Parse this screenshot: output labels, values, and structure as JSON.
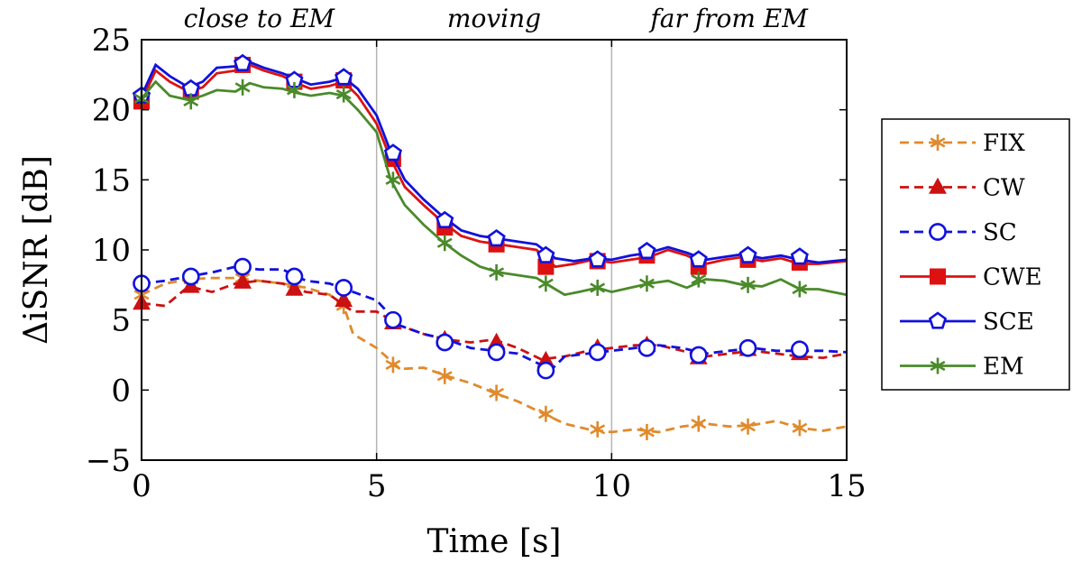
{
  "chart_data": {
    "type": "line",
    "title": "",
    "xlabel": "Time [s]",
    "ylabel": "ΔiSNR [dB]",
    "xlim": [
      0,
      15
    ],
    "ylim": [
      -5,
      25
    ],
    "xticks": [
      0,
      5,
      10,
      15
    ],
    "yticks": [
      -5,
      0,
      5,
      10,
      15,
      20,
      25
    ],
    "grid": "vertical-at-5-and-10",
    "legend": "right",
    "regions": [
      {
        "label": "close to EM",
        "x": 2.5
      },
      {
        "label": "moving",
        "x": 7.5
      },
      {
        "label": "far from EM",
        "x": 12.5
      }
    ],
    "series": [
      {
        "name": "FIX",
        "color": "#e08a2c",
        "dash": "dashed",
        "marker": "asterisk",
        "x": [
          0,
          0.5,
          1.0,
          1.5,
          2.0,
          2.5,
          3.0,
          3.5,
          4.0,
          4.3,
          4.5,
          5.0,
          5.5,
          6.0,
          6.5,
          7.0,
          7.5,
          8.0,
          8.5,
          9.0,
          9.5,
          10.0,
          10.5,
          11.0,
          11.5,
          12.0,
          12.5,
          13.0,
          13.5,
          14.0,
          14.5,
          15.0
        ],
        "y": [
          6.8,
          7.6,
          7.9,
          8.0,
          8.0,
          7.8,
          7.6,
          7.3,
          6.8,
          6.0,
          4.0,
          3.0,
          1.5,
          1.6,
          1.0,
          0.5,
          -0.2,
          -0.8,
          -1.6,
          -2.4,
          -2.8,
          -3.0,
          -2.8,
          -3.0,
          -2.6,
          -2.4,
          -2.6,
          -2.5,
          -2.2,
          -2.7,
          -2.9,
          -2.6
        ],
        "mx": [
          0.0,
          1.05,
          2.15,
          3.25,
          4.3,
          5.35,
          6.45,
          7.55,
          8.6,
          9.7,
          10.75,
          11.85,
          12.9,
          14.0
        ],
        "my": [
          6.8,
          7.9,
          8.0,
          7.6,
          6.0,
          1.8,
          1.0,
          -0.2,
          -1.7,
          -2.8,
          -3.0,
          -2.4,
          -2.6,
          -2.7
        ]
      },
      {
        "name": "CW",
        "color": "#cc1111",
        "dash": "dashed",
        "marker": "triangle",
        "x": [
          0,
          0.5,
          1.0,
          1.5,
          2.0,
          2.5,
          3.0,
          3.5,
          4.0,
          4.5,
          5.0,
          5.5,
          6.0,
          6.5,
          7.0,
          7.5,
          8.0,
          8.5,
          9.0,
          9.5,
          10.0,
          10.5,
          11.0,
          11.5,
          12.0,
          12.5,
          13.0,
          13.5,
          14.0,
          14.5,
          15.0
        ],
        "y": [
          6.2,
          6.0,
          7.4,
          7.0,
          7.6,
          7.8,
          7.6,
          7.0,
          6.8,
          5.6,
          5.6,
          4.6,
          4.0,
          3.6,
          3.4,
          3.6,
          3.0,
          2.2,
          2.4,
          2.8,
          3.0,
          3.2,
          3.2,
          2.8,
          2.4,
          2.6,
          2.8,
          2.6,
          2.4,
          2.3,
          2.6
        ],
        "mx": [
          0.0,
          1.05,
          2.15,
          3.25,
          4.3,
          5.35,
          6.45,
          7.55,
          8.6,
          9.7,
          10.75,
          11.85,
          12.9,
          14.0
        ],
        "my": [
          6.2,
          7.4,
          7.7,
          7.2,
          6.4,
          4.8,
          3.6,
          3.4,
          2.1,
          3.0,
          3.2,
          2.3,
          2.9,
          2.6
        ]
      },
      {
        "name": "SC",
        "color": "#1111dd",
        "dash": "dashed",
        "marker": "circle",
        "x": [
          0,
          0.5,
          1.0,
          1.5,
          2.0,
          2.5,
          3.0,
          3.5,
          4.0,
          4.5,
          5.0,
          5.5,
          6.0,
          6.5,
          7.0,
          7.5,
          8.0,
          8.5,
          8.7,
          9.0,
          9.5,
          10.0,
          10.5,
          11.0,
          11.5,
          12.0,
          12.5,
          13.0,
          13.5,
          14.0,
          14.5,
          15.0
        ],
        "y": [
          7.6,
          7.8,
          8.1,
          8.4,
          8.8,
          8.6,
          8.6,
          7.8,
          7.6,
          7.0,
          6.4,
          4.6,
          4.0,
          3.6,
          3.0,
          2.8,
          2.6,
          1.8,
          1.4,
          2.4,
          2.6,
          2.8,
          3.0,
          3.2,
          3.0,
          2.6,
          2.8,
          3.0,
          2.8,
          2.8,
          2.8,
          2.7
        ],
        "mx": [
          0.0,
          1.05,
          2.15,
          3.25,
          4.3,
          5.35,
          6.45,
          7.55,
          8.6,
          9.7,
          10.75,
          11.85,
          12.9,
          14.0
        ],
        "my": [
          7.6,
          8.1,
          8.8,
          8.1,
          7.3,
          5.0,
          3.4,
          2.7,
          1.4,
          2.7,
          3.0,
          2.5,
          3.0,
          2.9
        ]
      },
      {
        "name": "CWE",
        "color": "#dd1111",
        "dash": "solid",
        "marker": "square",
        "x": [
          0,
          0.3,
          0.6,
          1.0,
          1.3,
          1.6,
          2.0,
          2.3,
          2.6,
          3.0,
          3.3,
          3.6,
          4.0,
          4.3,
          4.6,
          5.0,
          5.3,
          5.6,
          6.0,
          6.4,
          6.8,
          7.2,
          7.6,
          8.0,
          8.4,
          8.8,
          9.2,
          9.6,
          10.0,
          10.4,
          10.8,
          11.2,
          11.6,
          12.0,
          12.4,
          12.8,
          13.2,
          13.6,
          14.0,
          14.4,
          15.0
        ],
        "y": [
          20.6,
          22.8,
          22.0,
          21.3,
          21.6,
          22.6,
          22.8,
          23.2,
          22.8,
          22.4,
          21.9,
          21.5,
          21.7,
          22.0,
          21.0,
          19.0,
          16.5,
          14.5,
          13.2,
          12.0,
          11.0,
          10.6,
          10.4,
          10.2,
          10.0,
          8.8,
          9.0,
          9.3,
          9.1,
          9.3,
          9.5,
          10.0,
          9.6,
          9.0,
          9.3,
          9.5,
          9.2,
          9.4,
          9.0,
          9.0,
          9.2
        ],
        "mx": [
          0.0,
          1.05,
          2.15,
          3.25,
          4.3,
          5.35,
          6.45,
          7.55,
          8.6,
          9.7,
          10.75,
          11.85,
          12.9,
          14.0
        ],
        "my": [
          20.6,
          21.3,
          23.2,
          22.0,
          22.1,
          16.5,
          11.6,
          10.4,
          8.8,
          9.2,
          9.6,
          8.8,
          9.3,
          9.1
        ]
      },
      {
        "name": "SCE",
        "color": "#1111dd",
        "dash": "solid",
        "marker": "pentagon",
        "x": [
          0,
          0.3,
          0.6,
          1.0,
          1.3,
          1.6,
          2.0,
          2.3,
          2.6,
          3.0,
          3.3,
          3.6,
          4.0,
          4.3,
          4.6,
          5.0,
          5.3,
          5.6,
          6.0,
          6.4,
          6.8,
          7.2,
          7.6,
          8.0,
          8.4,
          8.8,
          9.2,
          9.6,
          10.0,
          10.4,
          10.8,
          11.2,
          11.6,
          12.0,
          12.4,
          12.8,
          13.2,
          13.6,
          14.0,
          14.4,
          15.0
        ],
        "y": [
          21.0,
          23.2,
          22.4,
          21.6,
          22.0,
          23.0,
          23.1,
          23.4,
          23.0,
          22.6,
          22.2,
          21.8,
          22.0,
          22.3,
          21.5,
          19.6,
          17.0,
          15.0,
          13.6,
          12.4,
          11.4,
          11.0,
          10.8,
          10.6,
          10.4,
          9.4,
          9.2,
          9.4,
          9.3,
          9.6,
          9.8,
          10.2,
          9.8,
          9.3,
          9.5,
          9.7,
          9.4,
          9.6,
          9.3,
          9.1,
          9.3
        ],
        "mx": [
          0.0,
          1.05,
          2.15,
          3.25,
          4.3,
          5.35,
          6.45,
          7.55,
          8.6,
          9.7,
          10.75,
          11.85,
          12.9,
          14.0
        ],
        "my": [
          21.0,
          21.5,
          23.3,
          22.1,
          22.3,
          16.9,
          12.1,
          10.8,
          9.6,
          9.3,
          9.9,
          9.3,
          9.6,
          9.5
        ]
      },
      {
        "name": "EM",
        "color": "#4a8a2a",
        "dash": "solid",
        "marker": "asterisk",
        "x": [
          0,
          0.3,
          0.6,
          1.0,
          1.3,
          1.6,
          2.0,
          2.3,
          2.6,
          3.0,
          3.3,
          3.6,
          4.0,
          4.3,
          4.6,
          5.0,
          5.3,
          5.6,
          6.0,
          6.4,
          6.8,
          7.2,
          7.6,
          8.0,
          8.4,
          8.8,
          9.0,
          9.3,
          9.7,
          10.0,
          10.4,
          10.8,
          11.2,
          11.6,
          12.0,
          12.4,
          12.8,
          13.2,
          13.6,
          14.0,
          14.4,
          15.0
        ],
        "y": [
          20.8,
          22.0,
          21.0,
          20.7,
          21.0,
          21.4,
          21.3,
          21.9,
          21.6,
          21.5,
          21.2,
          21.0,
          21.2,
          21.0,
          20.0,
          18.4,
          15.0,
          13.2,
          11.8,
          10.6,
          9.6,
          8.8,
          8.4,
          8.2,
          8.0,
          7.2,
          6.8,
          7.0,
          7.3,
          7.0,
          7.3,
          7.6,
          7.8,
          7.3,
          7.9,
          7.8,
          7.5,
          7.4,
          7.9,
          7.2,
          7.2,
          6.8
        ],
        "mx": [
          0.0,
          1.05,
          2.15,
          3.25,
          4.3,
          5.35,
          6.45,
          7.55,
          8.6,
          9.7,
          10.75,
          11.85,
          12.9,
          14.0
        ],
        "my": [
          20.8,
          20.6,
          21.6,
          21.4,
          21.1,
          15.0,
          10.5,
          8.4,
          7.6,
          7.3,
          7.6,
          7.9,
          7.5,
          7.2
        ]
      }
    ]
  }
}
